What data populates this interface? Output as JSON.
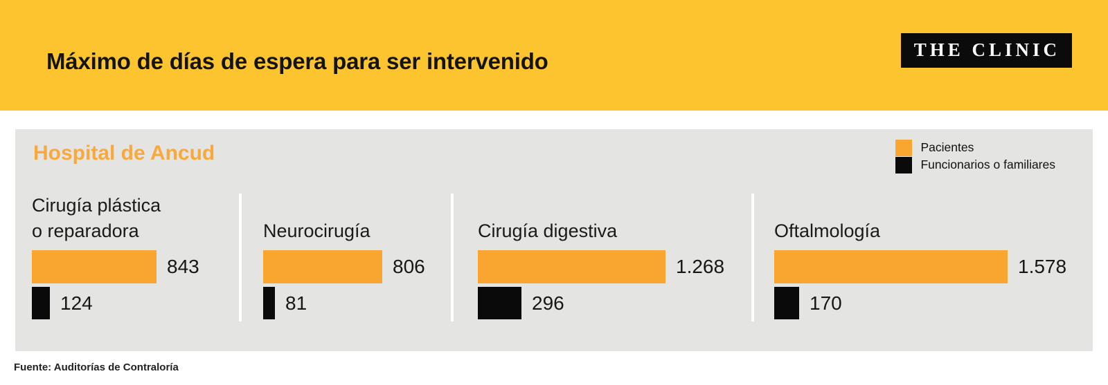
{
  "header": {
    "title": "Máximo de días de espera para ser intervenido",
    "brand": "THE CLINIC"
  },
  "panel": {
    "title": "Hospital de Ancud"
  },
  "legend": {
    "items": [
      {
        "label": "Pacientes",
        "color": "#f8a62f"
      },
      {
        "label": "Funcionarios o familiares",
        "color": "#0a0a0a"
      }
    ]
  },
  "footer": {
    "source": "Fuente: Auditorías de Contraloría"
  },
  "colors": {
    "header_bg": "#fcc52f",
    "panel_bg": "#e4e4e2",
    "accent_orange": "#f9a83c",
    "bar_orange": "#f8a62f",
    "bar_black": "#0a0a0a",
    "text": "#1a1a1a"
  },
  "chart_data": {
    "type": "bar",
    "orientation": "horizontal",
    "title": "Máximo de días de espera para ser intervenido",
    "subtitle": "Hospital de Ancud",
    "categories": [
      "Cirugía plástica o reparadora",
      "Neurocirugía",
      "Cirugía digestiva",
      "Oftalmología"
    ],
    "label_lines": [
      [
        "Cirugía plástica",
        "o reparadora"
      ],
      [
        "Neurocirugía"
      ],
      [
        "Cirugía digestiva"
      ],
      [
        "Oftalmología"
      ]
    ],
    "series": [
      {
        "name": "Pacientes",
        "color": "#f8a62f",
        "values": [
          843,
          806,
          1268,
          1578
        ],
        "display": [
          "843",
          "806",
          "1.268",
          "1.578"
        ]
      },
      {
        "name": "Funcionarios o familiares",
        "color": "#0a0a0a",
        "values": [
          124,
          81,
          296,
          170
        ],
        "display": [
          "124",
          "81",
          "296",
          "170"
        ]
      }
    ],
    "max_value": 1578,
    "xlabel": "",
    "ylabel": "",
    "legend_position": "top-right",
    "grid": false,
    "source": "Fuente: Auditorías de Contraloría"
  }
}
